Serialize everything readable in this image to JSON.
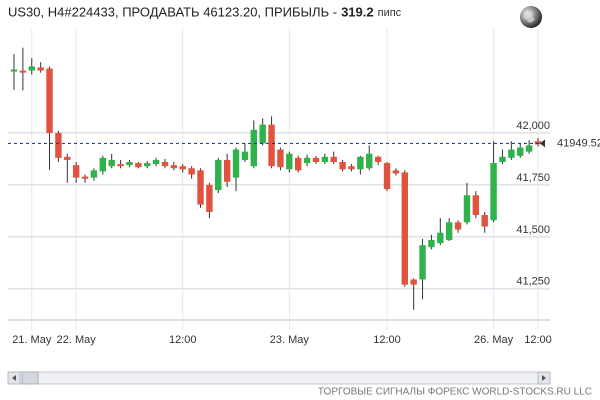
{
  "chart_data": {
    "type": "candlestick",
    "title": "US30, H4#224433, ПРОДАВАТЬ 46123.20, ПРИБЫЛЬ -",
    "profit": 319.2,
    "profit_unit": "пипс",
    "footer": "ТОРГОВЫЕ СИГНАЛЫ ФОРЕКС WORLD-STOCKS.RU LLC",
    "current_price": 41949.52,
    "up_color": "#2fb24a",
    "down_color": "#e0533f",
    "ylim": [
      41100,
      42500
    ],
    "yticks": [
      {
        "value": 41250,
        "label": "41,250"
      },
      {
        "value": 41500,
        "label": "41,500"
      },
      {
        "value": 41750,
        "label": "41,750"
      },
      {
        "value": 42000,
        "label": "42,000"
      }
    ],
    "categories": [
      null,
      null,
      "21. May",
      null,
      null,
      null,
      null,
      "22. May",
      null,
      null,
      null,
      null,
      null,
      null,
      null,
      null,
      null,
      null,
      null,
      "12:00",
      null,
      null,
      null,
      null,
      null,
      null,
      null,
      null,
      null,
      null,
      null,
      "23. May",
      null,
      null,
      null,
      null,
      null,
      null,
      null,
      null,
      null,
      null,
      "12:00",
      null,
      null,
      null,
      null,
      null,
      null,
      null,
      null,
      null,
      null,
      null,
      "26. May",
      null,
      null,
      null,
      null,
      "12:00"
    ],
    "open": [
      42295,
      42300,
      42300,
      42315,
      42310,
      42000,
      41885,
      41845,
      41790,
      41785,
      41815,
      41840,
      41850,
      41845,
      41855,
      41840,
      41850,
      41860,
      41845,
      41840,
      41830,
      41820,
      41750,
      41725,
      41870,
      41785,
      41870,
      41840,
      41950,
      42040,
      41920,
      41825,
      41880,
      41855,
      41880,
      41860,
      41885,
      41860,
      41840,
      41825,
      41830,
      41885,
      41855,
      41820,
      41810,
      41295,
      41295,
      41450,
      41470,
      41485,
      41570,
      41570,
      41700,
      41605,
      41580,
      41860,
      41880,
      41890,
      41910,
      41960
    ],
    "high": [
      42380,
      42410,
      42360,
      42340,
      42320,
      42010,
      41900,
      41860,
      41800,
      41830,
      41890,
      41900,
      41870,
      41870,
      41860,
      41865,
      41880,
      41875,
      41860,
      41850,
      41840,
      41830,
      41760,
      41880,
      41900,
      41930,
      41950,
      42060,
      42070,
      42080,
      41930,
      41910,
      41890,
      41895,
      41890,
      41900,
      41910,
      41870,
      41850,
      41890,
      41940,
      41890,
      41860,
      41830,
      41820,
      41300,
      41490,
      41510,
      41590,
      41590,
      41580,
      41760,
      41720,
      41620,
      41960,
      41920,
      41960,
      41950,
      41965,
      41975
    ],
    "low": [
      42207,
      42205,
      42280,
      42290,
      41822,
      41860,
      41760,
      41760,
      41760,
      41770,
      41800,
      41830,
      41830,
      41835,
      41830,
      41830,
      41840,
      41830,
      41820,
      41810,
      41780,
      41640,
      41590,
      41710,
      41740,
      41720,
      41860,
      41830,
      41940,
      41830,
      41820,
      41810,
      41810,
      41840,
      41850,
      41850,
      41850,
      41815,
      41815,
      41800,
      41820,
      41845,
      41720,
      41795,
      41260,
      41149,
      41200,
      41440,
      41460,
      41480,
      41520,
      41560,
      41590,
      41520,
      41570,
      41850,
      41870,
      41880,
      41900,
      41935
    ],
    "close": [
      42305,
      42290,
      42320,
      42300,
      42000,
      41880,
      41870,
      41785,
      41780,
      41820,
      41880,
      41870,
      41840,
      41860,
      41835,
      41855,
      41870,
      41840,
      41830,
      41825,
      41800,
      41655,
      41620,
      41870,
      41765,
      41920,
      41910,
      42015,
      42040,
      41840,
      41835,
      41900,
      41820,
      41880,
      41860,
      41885,
      41860,
      41825,
      41825,
      41885,
      41900,
      41860,
      41730,
      41805,
      41270,
      41270,
      41460,
      41485,
      41520,
      41570,
      41535,
      41700,
      41605,
      41550,
      41855,
      41885,
      41920,
      41930,
      41940,
      41945
    ]
  }
}
